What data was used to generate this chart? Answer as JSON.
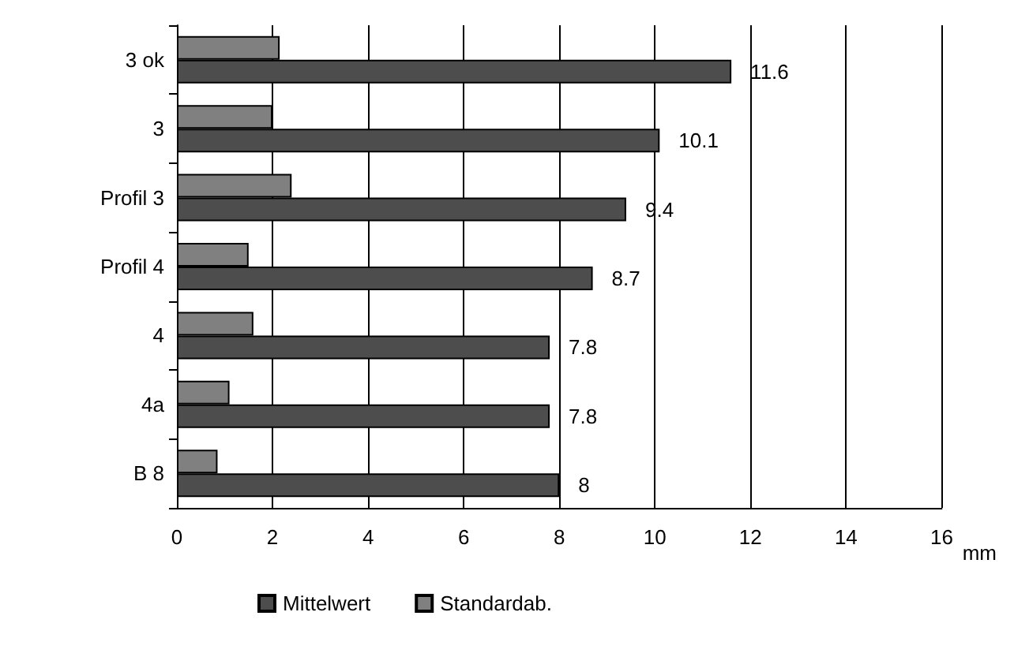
{
  "chart_data": {
    "type": "bar",
    "orientation": "horizontal",
    "categories": [
      "3 ok",
      "3",
      "Profil 3",
      "Profil 4",
      "4",
      "4a",
      "B 8"
    ],
    "series": [
      {
        "name": "Mittelwert",
        "color": "#4d4d4d",
        "values": [
          11.6,
          10.1,
          9.4,
          8.7,
          7.8,
          7.8,
          8
        ],
        "value_labels": [
          "11.6",
          "10.1",
          "9.4",
          "8.7",
          "7.8",
          "7.8",
          "8"
        ]
      },
      {
        "name": "Standardab.",
        "color": "#808080",
        "values": [
          2.15,
          2.0,
          2.4,
          1.5,
          1.6,
          1.1,
          0.85
        ]
      }
    ],
    "xlabel": "mm",
    "xlim": [
      0,
      16
    ],
    "xticks": [
      0,
      2,
      4,
      6,
      8,
      10,
      12,
      14,
      16
    ],
    "grid": "x",
    "legend": "bottom"
  }
}
